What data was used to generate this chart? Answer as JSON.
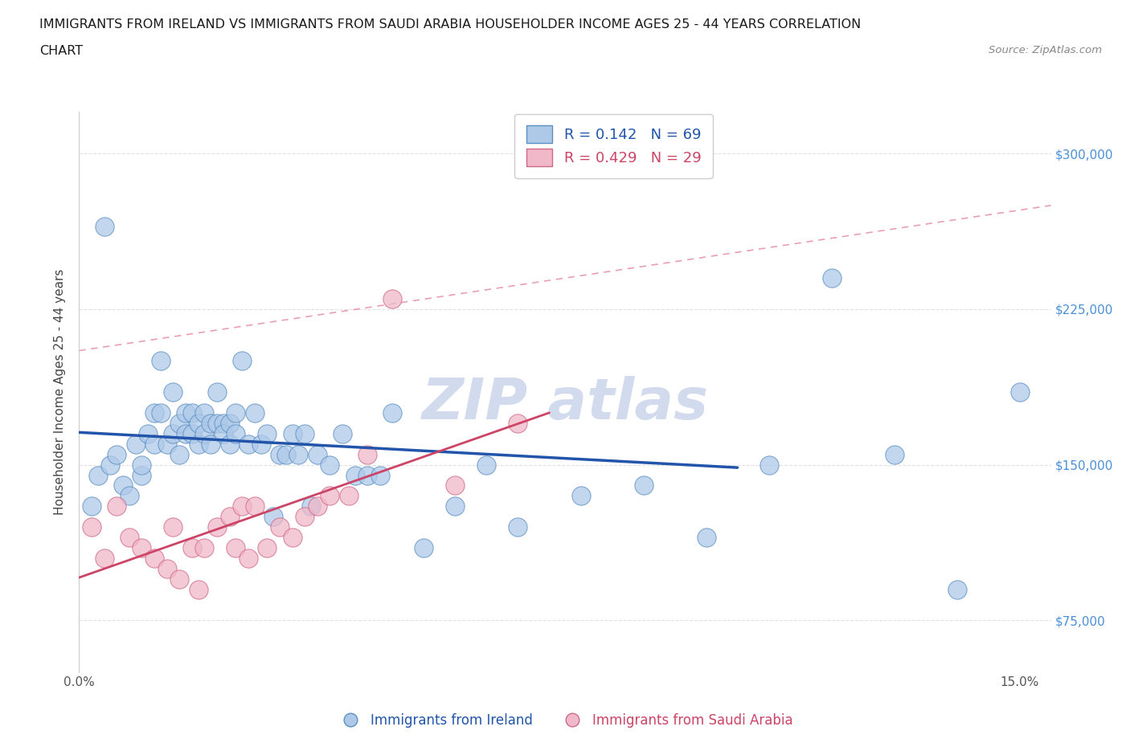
{
  "title_line1": "IMMIGRANTS FROM IRELAND VS IMMIGRANTS FROM SAUDI ARABIA HOUSEHOLDER INCOME AGES 25 - 44 YEARS CORRELATION",
  "title_line2": "CHART",
  "source_text": "Source: ZipAtlas.com",
  "ylabel": "Householder Income Ages 25 - 44 years",
  "xlim": [
    0.0,
    0.155
  ],
  "ylim": [
    50000,
    320000
  ],
  "xticks": [
    0.0,
    0.03,
    0.06,
    0.09,
    0.12,
    0.15
  ],
  "xticklabels": [
    "0.0%",
    "",
    "",
    "",
    "",
    "15.0%"
  ],
  "yticks": [
    75000,
    150000,
    225000,
    300000
  ],
  "yticklabels": [
    "$75,000",
    "$150,000",
    "$225,000",
    "$300,000"
  ],
  "ytick_color": "#4a90d9",
  "ireland_fill": "#aec9e8",
  "ireland_edge": "#5b8fc4",
  "saudi_fill": "#f0b8c8",
  "saudi_edge": "#d06888",
  "ireland_line": "#2255aa",
  "saudi_line": "#cc4466",
  "diag_line": "#e8a0b0",
  "R_ireland": 0.142,
  "N_ireland": 69,
  "R_saudi": 0.429,
  "N_saudi": 29,
  "legend_ireland": "Immigrants from Ireland",
  "legend_saudi": "Immigrants from Saudi Arabia",
  "ireland_x": [
    0.002,
    0.003,
    0.004,
    0.005,
    0.006,
    0.007,
    0.008,
    0.009,
    0.01,
    0.01,
    0.011,
    0.012,
    0.012,
    0.013,
    0.013,
    0.014,
    0.015,
    0.015,
    0.016,
    0.016,
    0.017,
    0.017,
    0.018,
    0.018,
    0.019,
    0.019,
    0.02,
    0.02,
    0.021,
    0.021,
    0.022,
    0.022,
    0.023,
    0.023,
    0.024,
    0.024,
    0.025,
    0.025,
    0.026,
    0.027,
    0.028,
    0.029,
    0.03,
    0.031,
    0.032,
    0.033,
    0.034,
    0.035,
    0.036,
    0.037,
    0.038,
    0.04,
    0.042,
    0.044,
    0.046,
    0.048,
    0.05,
    0.055,
    0.06,
    0.065,
    0.07,
    0.08,
    0.09,
    0.1,
    0.11,
    0.12,
    0.13,
    0.14,
    0.15
  ],
  "ireland_y": [
    130000,
    145000,
    265000,
    150000,
    155000,
    140000,
    135000,
    160000,
    145000,
    150000,
    165000,
    160000,
    175000,
    175000,
    200000,
    160000,
    165000,
    185000,
    170000,
    155000,
    165000,
    175000,
    165000,
    175000,
    160000,
    170000,
    165000,
    175000,
    160000,
    170000,
    170000,
    185000,
    170000,
    165000,
    170000,
    160000,
    165000,
    175000,
    200000,
    160000,
    175000,
    160000,
    165000,
    125000,
    155000,
    155000,
    165000,
    155000,
    165000,
    130000,
    155000,
    150000,
    165000,
    145000,
    145000,
    145000,
    175000,
    110000,
    130000,
    150000,
    120000,
    135000,
    140000,
    115000,
    150000,
    240000,
    155000,
    90000,
    185000
  ],
  "saudi_x": [
    0.002,
    0.004,
    0.006,
    0.008,
    0.01,
    0.012,
    0.014,
    0.015,
    0.016,
    0.018,
    0.019,
    0.02,
    0.022,
    0.024,
    0.025,
    0.026,
    0.027,
    0.028,
    0.03,
    0.032,
    0.034,
    0.036,
    0.038,
    0.04,
    0.043,
    0.046,
    0.05,
    0.06,
    0.07
  ],
  "saudi_y": [
    120000,
    105000,
    130000,
    115000,
    110000,
    105000,
    100000,
    120000,
    95000,
    110000,
    90000,
    110000,
    120000,
    125000,
    110000,
    130000,
    105000,
    130000,
    110000,
    120000,
    115000,
    125000,
    130000,
    135000,
    135000,
    155000,
    230000,
    140000,
    170000
  ],
  "bg_color": "#ffffff",
  "grid_color": "#e0e0e0",
  "watermark_color": "#ccd8ec"
}
